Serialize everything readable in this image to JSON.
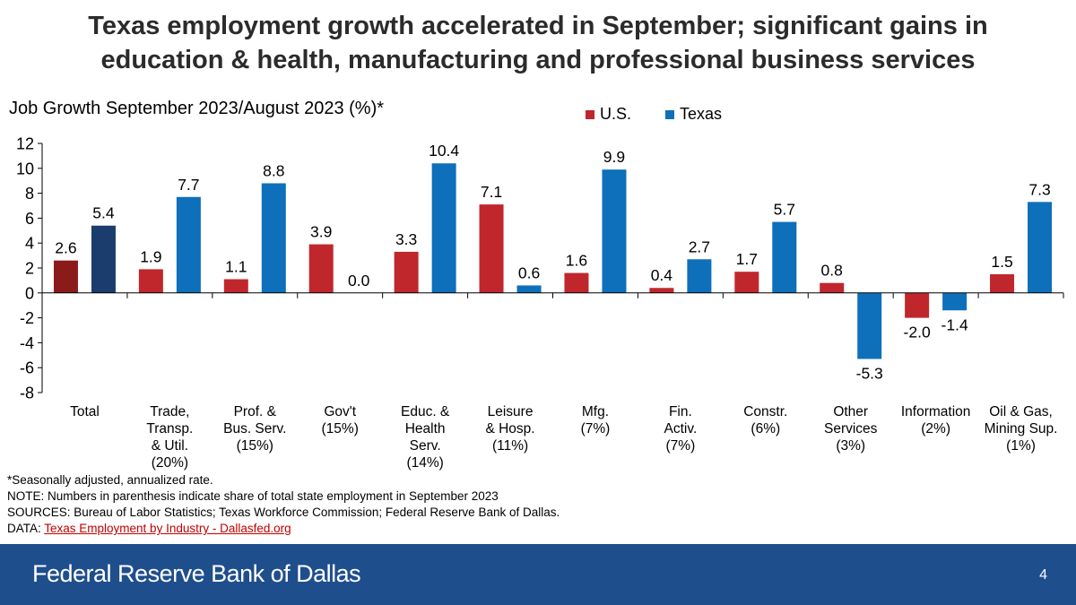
{
  "title_line1": "Texas employment growth accelerated in September; significant gains in",
  "title_line2": "education & health, manufacturing and professional business services",
  "footer": {
    "bank": "Federal Reserve Bank of Dallas",
    "page": "4"
  },
  "notes": {
    "line1": "*Seasonally adjusted, annualized rate.",
    "line2": "NOTE: Numbers in parenthesis indicate share of total state employment in September 2023",
    "line3": "SOURCES: Bureau of Labor Statistics; Texas Workforce Commission; Federal Reserve Bank of Dallas.",
    "data_prefix": "DATA: ",
    "data_link": "Texas Employment by Industry - Dallasfed.org"
  },
  "chart_data": {
    "type": "bar",
    "title": "Job Growth September 2023/August 2023 (%)*",
    "ylim": [
      -8,
      12
    ],
    "yticks": [
      12,
      10,
      8,
      6,
      4,
      2,
      0,
      -2,
      -4,
      -6,
      -8
    ],
    "legend_position": "top",
    "categories": [
      [
        "Total"
      ],
      [
        "Trade,",
        "Transp.",
        "& Util.",
        "(20%)"
      ],
      [
        "Prof. &",
        "Bus. Serv.",
        "(15%)"
      ],
      [
        "Gov't",
        "(15%)"
      ],
      [
        "Educ. &",
        "Health",
        "Serv.",
        "(14%)"
      ],
      [
        "Leisure",
        "& Hosp.",
        "(11%)"
      ],
      [
        "Mfg.",
        "(7%)"
      ],
      [
        "Fin.",
        "Activ.",
        "(7%)"
      ],
      [
        "Constr.",
        "(6%)"
      ],
      [
        "Other",
        "Services",
        "(3%)"
      ],
      [
        "Information",
        "(2%)"
      ],
      [
        "Oil & Gas,",
        "Mining Sup.",
        "(1%)"
      ]
    ],
    "series": [
      {
        "name": "U.S.",
        "color": "#c0272d",
        "total_color": "#8b1a1a",
        "values": [
          2.6,
          1.9,
          1.1,
          3.9,
          3.3,
          7.1,
          1.6,
          0.4,
          1.7,
          0.8,
          -2.0,
          1.5
        ],
        "labels": [
          "2.6",
          "1.9",
          "1.1",
          "3.9",
          "3.3",
          "7.1",
          "1.6",
          "0.4",
          "1.7",
          "0.8",
          "-2.0",
          "1.5"
        ]
      },
      {
        "name": "Texas",
        "color": "#0e6fba",
        "total_color": "#1b3d6e",
        "values": [
          5.4,
          7.7,
          8.8,
          0.0,
          10.4,
          0.6,
          9.9,
          2.7,
          5.7,
          -5.3,
          -1.4,
          7.3
        ],
        "labels": [
          "5.4",
          "7.7",
          "8.8",
          "0.0",
          "10.4",
          "0.6",
          "9.9",
          "2.7",
          "5.7",
          "-5.3",
          "-1.4",
          "7.3"
        ]
      }
    ]
  }
}
